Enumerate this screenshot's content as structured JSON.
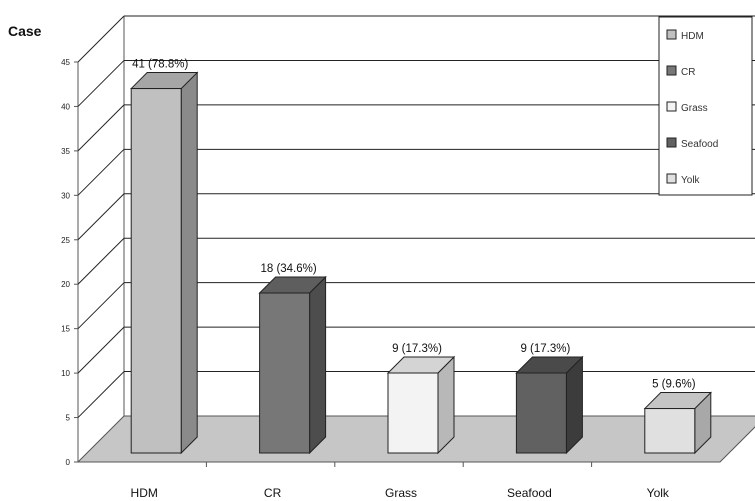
{
  "chart_data": {
    "type": "bar",
    "ylabel": "Case",
    "xlabel": "",
    "title": "",
    "categories": [
      "HDM",
      "CR",
      "Grass",
      "Seafood",
      "Yolk"
    ],
    "values": [
      41,
      18,
      9,
      9,
      5
    ],
    "data_labels": [
      "41 (78.8%)",
      "18 (34.6%)",
      "9 (17.3%)",
      "9 (17.3%)",
      "5 (9.6%)"
    ],
    "ylim": [
      0,
      45
    ],
    "yticks": [
      0,
      5,
      10,
      15,
      20,
      25,
      30,
      35,
      40,
      45
    ],
    "grid": true,
    "legend_position": "top-right",
    "legend": [
      "HDM",
      "CR",
      "Grass",
      "Seafood",
      "Yolk"
    ],
    "colors": [
      "#c0c0c0",
      "#777777",
      "#f3f3f3",
      "#616161",
      "#e0e0e0"
    ],
    "side_colors": [
      "#8a8a8a",
      "#4d4d4d",
      "#b8b8b8",
      "#3c3c3c",
      "#a8a8a8"
    ],
    "top_colors": [
      "#a6a6a6",
      "#5e5e5e",
      "#d4d4d4",
      "#4a4a4a",
      "#c4c4c4"
    ]
  }
}
